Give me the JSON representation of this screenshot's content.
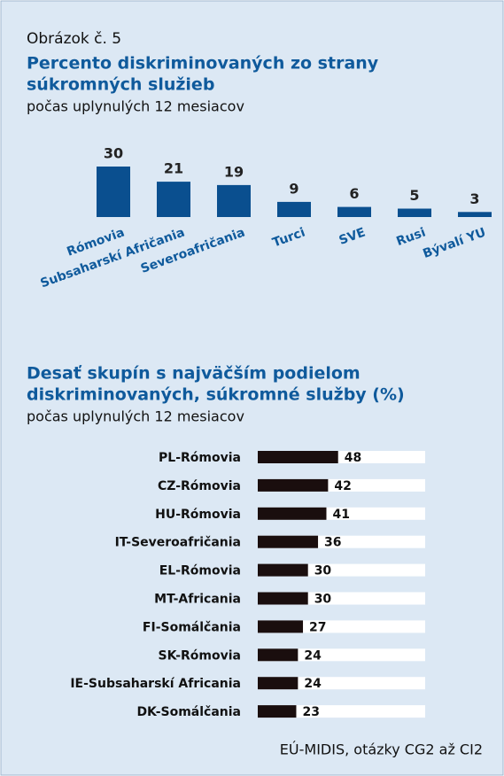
{
  "figure_label": "Obrázok č. 5",
  "source": "EÚ-MIDIS, otázky CG2 až CI2",
  "chart_data": [
    {
      "type": "bar",
      "title": [
        "Percento diskriminovaných zo strany",
        "súkromných služieb"
      ],
      "subtitle": "počas uplynulých 12 mesiacov",
      "categories": [
        "Rómovia",
        "Subsaharskí Afričania",
        "Severoafričania",
        "Turci",
        "SVE",
        "Rusi",
        "Bývalí YU"
      ],
      "values": [
        30,
        21,
        19,
        9,
        6,
        5,
        3
      ],
      "color": "#0a4f8f"
    },
    {
      "type": "barh",
      "title": [
        "Desať skupín s najväčším podielom",
        "diskriminovaných, súkromné služby (%)"
      ],
      "subtitle": "počas uplynulých 12 mesiacov",
      "categories": [
        "PL-Rómovia",
        "CZ-Rómovia",
        "HU-Rómovia",
        "IT-Severoafričania",
        "EL-Rómovia",
        "MT-Africania",
        "FI-Somálčania",
        "SK-Rómovia",
        "IE-Subsaharskí Africania",
        "DK-Somálčania"
      ],
      "values": [
        48,
        42,
        41,
        36,
        30,
        30,
        27,
        24,
        24,
        23
      ],
      "xlim": [
        0,
        100
      ],
      "color": "#1a0e0e"
    }
  ]
}
